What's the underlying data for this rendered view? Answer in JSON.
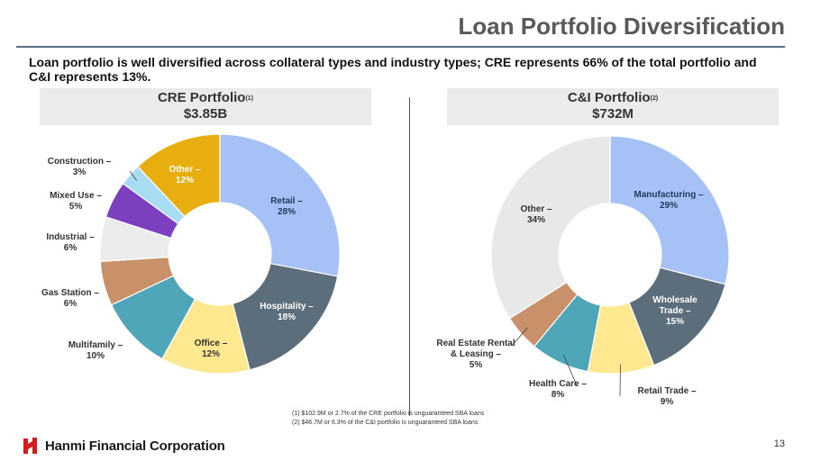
{
  "header": {
    "title": "Loan Portfolio Diversification",
    "subtitle": "Loan portfolio is well diversified across collateral types and industry types; CRE represents 66% of the total portfolio and C&I represents 13%."
  },
  "chart_data": [
    {
      "type": "pie",
      "title": "CRE Portfolio",
      "title_superscript": "(1)",
      "total": "$3.85B",
      "slices": [
        {
          "name": "Retail",
          "value": 28,
          "label": "Retail –",
          "pct": "28%",
          "color": "#a6c1f5"
        },
        {
          "name": "Hospitality",
          "value": 18,
          "label": "Hospitality –",
          "pct": "18%",
          "color": "#5c6e7c"
        },
        {
          "name": "Office",
          "value": 12,
          "label": "Office –",
          "pct": "12%",
          "color": "#ffe88f"
        },
        {
          "name": "Multifamily",
          "value": 10,
          "label": "Multifamily –",
          "pct": "10%",
          "color": "#4fa6b8"
        },
        {
          "name": "Gas Station",
          "value": 6,
          "label": "Gas Station –",
          "pct": "6%",
          "color": "#c9916a"
        },
        {
          "name": "Industrial",
          "value": 6,
          "label": "Industrial –",
          "pct": "6%",
          "color": "#ececec"
        },
        {
          "name": "Mixed Use",
          "value": 5,
          "label": "Mixed Use –",
          "pct": "5%",
          "color": "#7b3fc0"
        },
        {
          "name": "Construction",
          "value": 3,
          "label": "Construction –",
          "pct": "3%",
          "color": "#a8dcf3"
        },
        {
          "name": "Other",
          "value": 12,
          "label": "Other –",
          "pct": "12%",
          "color": "#e8ae0f"
        }
      ]
    },
    {
      "type": "pie",
      "title": "C&I Portfolio",
      "title_superscript": "(2)",
      "total": "$732M",
      "slices": [
        {
          "name": "Manufacturing",
          "value": 29,
          "label": "Manufacturing –",
          "pct": "29%",
          "color": "#a6c1f5"
        },
        {
          "name": "Wholesale Trade",
          "value": 15,
          "label": "Wholesale Trade –",
          "pct": "15%",
          "color": "#5c6e7c"
        },
        {
          "name": "Retail Trade",
          "value": 9,
          "label": "Retail Trade –",
          "pct": "9%",
          "color": "#ffe88f"
        },
        {
          "name": "Health Care",
          "value": 8,
          "label": "Health Care –",
          "pct": "8%",
          "color": "#4fa6b8"
        },
        {
          "name": "Real Estate Rental & Leasing",
          "value": 5,
          "label": "Real Estate Rental & Leasing –",
          "pct": "5%",
          "color": "#c9916a"
        },
        {
          "name": "Other",
          "value": 34,
          "label": "Other –",
          "pct": "34%",
          "color": "#e8e8e8"
        }
      ]
    }
  ],
  "footnotes": {
    "note1": "(1)   $102.9M or 2.7% of the CRE portfolio is unguaranteed SBA loans",
    "note2": "(2)   $46.7M or 6.3% of the C&I portfolio is unguaranteed SBA loans"
  },
  "footer": {
    "company": "Hanmi Financial Corporation",
    "page_number": "13",
    "logo_color": "#d71920"
  }
}
